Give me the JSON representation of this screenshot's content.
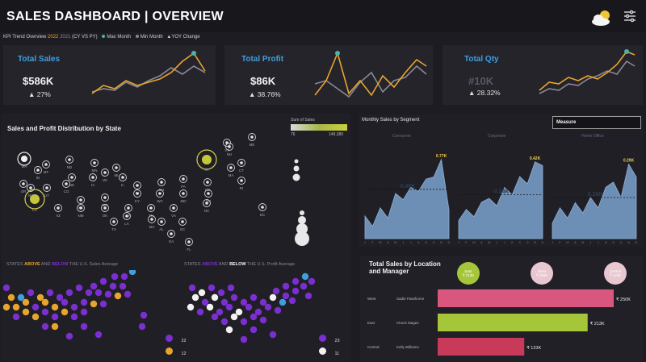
{
  "header": {
    "title": "SALES DASHBOARD | OVERVIEW",
    "legend": {
      "label": "KPI Trend Overview",
      "cy": "2022",
      "py": "2021",
      "cy_vs_py": "(CY VS PY)",
      "max_month": "Max Month",
      "min_month": "Min Month",
      "yoy": "YOY Change"
    }
  },
  "kpis": [
    {
      "title": "Total Sales",
      "value": "$586K",
      "change": "▲ 27%"
    },
    {
      "title": "Total Profit",
      "value": "$86K",
      "change": "▲ 38.76%"
    },
    {
      "title": "Total Qty",
      "value": "#10K",
      "change": "▲ 28.32%"
    }
  ],
  "map": {
    "title": "Sales and Profit Distribution by State",
    "scale_label": "Sum of Sales",
    "scale_min": "76",
    "scale_max": "149,380",
    "states": [
      "WA",
      "MT",
      "ND",
      "MN",
      "WI",
      "MI",
      "VT",
      "ME",
      "OR",
      "ID",
      "NE",
      "IA",
      "IL",
      "IN",
      "OH",
      "PA",
      "NY",
      "NH",
      "CA",
      "NV",
      "UT",
      "CO",
      "KS",
      "MO",
      "KY",
      "WV",
      "MD",
      "NJ",
      "MA",
      "RI",
      "AZ",
      "NM",
      "OK",
      "AR",
      "TN",
      "VA",
      "DE",
      "CT",
      "TX",
      "LA",
      "MS",
      "AL",
      "SC",
      "NC",
      "DC",
      "GA",
      "FL"
    ],
    "sales_caption": {
      "pre": "STATES",
      "above": "ABOVE",
      "and": "AND",
      "below": "BELOW",
      "post": "THE U.S. Sales Average"
    },
    "profit_caption": {
      "pre": "STATES",
      "above": "ABOVE",
      "and": "AND",
      "below": "BELOW",
      "post": "THE U.S. Profit Average"
    },
    "sales_legend": [
      {
        "count": "22",
        "color": "#7b2fd0"
      },
      {
        "count": "12",
        "color": "#e9a52b"
      }
    ],
    "profit_legend": [
      {
        "count": "23",
        "color": "#7b2fd0"
      },
      {
        "count": "11",
        "color": "#f2f2f2"
      }
    ]
  },
  "monthly": {
    "title": "Monthly Sales by Segment",
    "dropdown": "Measure",
    "segments": [
      {
        "name": "Consumer",
        "max_label": "0.77K",
        "avg_label": "0.48K"
      },
      {
        "name": "Corporate",
        "max_label": "0.42K",
        "avg_label": "0.24K"
      },
      {
        "name": "Home Office",
        "max_label": "0.29K",
        "avg_label": "0.16K"
      }
    ],
    "months": [
      "J",
      "F",
      "M",
      "A",
      "M",
      "J",
      "J",
      "A",
      "S",
      "O",
      "N",
      "D"
    ]
  },
  "location": {
    "title_line1": "Total Sales by Location",
    "title_line2": "and Manager",
    "regions": [
      {
        "name": "East",
        "sales": "₹ 213K",
        "color": "#a6c63a"
      },
      {
        "name": "West",
        "sales": "₹ 250K",
        "color": "#e8c7d0"
      },
      {
        "name": "Central",
        "sales": "₹ 123K",
        "color": "#e8c7d0"
      }
    ],
    "chart_data": {
      "type": "bar",
      "categories": [
        "West",
        "East",
        "Central"
      ],
      "managers": [
        "Sadie Pawthorne",
        "Chuck Magee",
        "Kelly Williams"
      ],
      "values": [
        250,
        213,
        123
      ],
      "value_labels": [
        "₹ 250K",
        "₹ 213K",
        "₹ 123K"
      ],
      "colors": [
        "#d9577e",
        "#a6c63a",
        "#c93a5a"
      ],
      "xlabel": "",
      "ylabel": "Sales (K)"
    }
  },
  "colors": {
    "accent_blue": "#3d9fe0",
    "cy": "#e9a52b",
    "py": "#8a8896",
    "marker": "#4bb3a8"
  }
}
